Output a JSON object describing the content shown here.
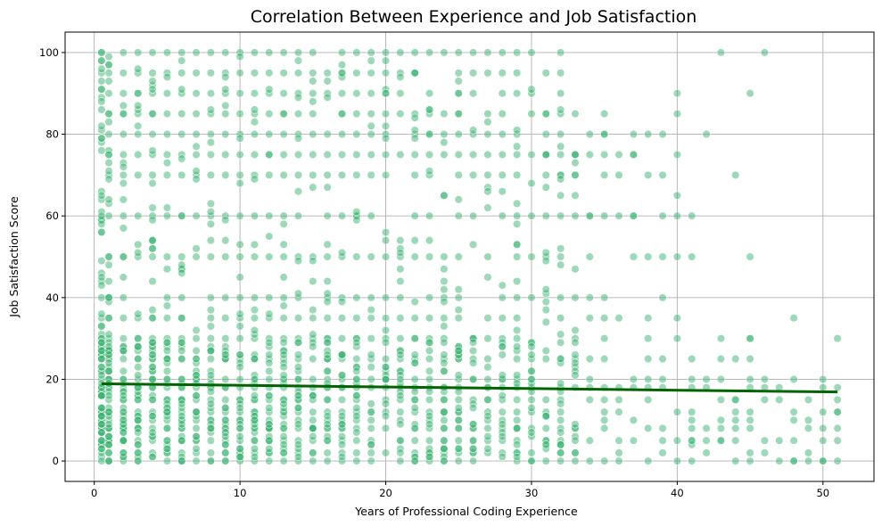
{
  "chart_data": {
    "type": "scatter",
    "title": "Correlation Between Experience and Job Satisfaction",
    "xlabel": "Years of Professional Coding Experience",
    "ylabel": "Job Satisfaction Score",
    "xlim": [
      -2,
      53.5
    ],
    "ylim": [
      -5,
      105
    ],
    "xticks": [
      0,
      10,
      20,
      30,
      40,
      50
    ],
    "yticks": [
      0,
      20,
      40,
      60,
      80,
      100
    ],
    "grid": true,
    "colors": {
      "points": "#3cb371",
      "trend": "#006400",
      "grid": "#b0b0b0"
    },
    "trend_line": {
      "x": [
        0.5,
        51
      ],
      "y": [
        18.9,
        16.9
      ]
    },
    "points": {
      "dense_levels": [
        0,
        2,
        5,
        8,
        10,
        12,
        15,
        18,
        20,
        25,
        30,
        35,
        40,
        50,
        60,
        70,
        75,
        80,
        85,
        90,
        95,
        100
      ],
      "sparse_points": [
        [
          34,
          60
        ],
        [
          36,
          60
        ],
        [
          37,
          60
        ],
        [
          40,
          65
        ],
        [
          41,
          60
        ],
        [
          39,
          70
        ],
        [
          44,
          70
        ],
        [
          46,
          100
        ],
        [
          43,
          100
        ],
        [
          42,
          80
        ],
        [
          48,
          35
        ],
        [
          45,
          50
        ],
        [
          45,
          30
        ],
        [
          45,
          90
        ],
        [
          40,
          90
        ],
        [
          40,
          85
        ],
        [
          47,
          0
        ],
        [
          48,
          0
        ],
        [
          49,
          0
        ],
        [
          50,
          0
        ],
        [
          51,
          0
        ],
        [
          51,
          30
        ],
        [
          51,
          12
        ],
        [
          51,
          15
        ],
        [
          51,
          18
        ],
        [
          49,
          2
        ],
        [
          48,
          5
        ],
        [
          46,
          5
        ],
        [
          44,
          15
        ],
        [
          43,
          5
        ],
        [
          41,
          4
        ],
        [
          41,
          5
        ],
        [
          38,
          35
        ],
        [
          35,
          80
        ],
        [
          36,
          75
        ],
        [
          37,
          75
        ],
        [
          38,
          80
        ],
        [
          33,
          75
        ],
        [
          32,
          80
        ],
        [
          31,
          75
        ]
      ],
      "count_note": ""
    }
  }
}
